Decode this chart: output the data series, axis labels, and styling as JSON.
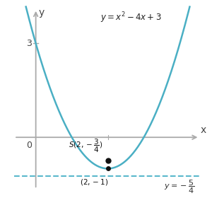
{
  "curve_color": "#4aafc4",
  "directrix_color": "#5ab8cc",
  "axis_color": "#aaaaaa",
  "dot_color": "#111111",
  "focus": [
    2,
    -0.75
  ],
  "vertex": [
    2,
    -1
  ],
  "directrix_y": -1.25,
  "xlim": [
    -0.7,
    4.6
  ],
  "ylim": [
    -1.75,
    4.2
  ],
  "parabola_xmin": -0.45,
  "parabola_xmax": 4.55
}
